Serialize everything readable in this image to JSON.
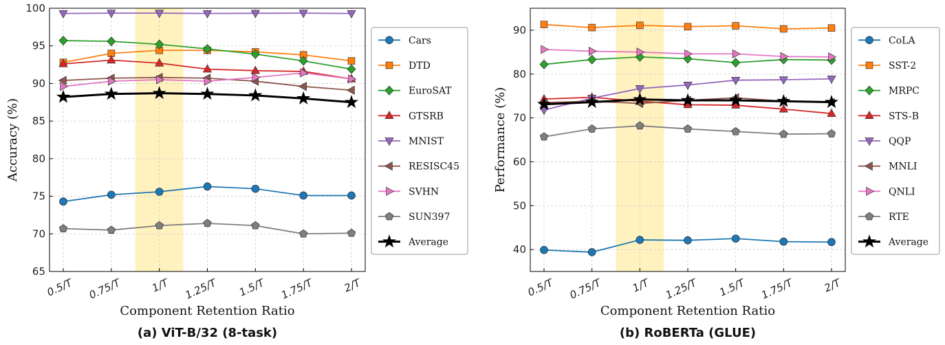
{
  "chart_data": [
    {
      "type": "line",
      "caption": "(a) ViT-B/32 (8-task)",
      "xlabel": "Component Retention Ratio",
      "ylabel": "Accuracy (%)",
      "categories": [
        "0.5/T",
        "0.75/T",
        "1/T",
        "1.25/T",
        "1.5/T",
        "1.75/T",
        "2/T"
      ],
      "ylim": [
        65,
        100
      ],
      "yticks": [
        65,
        70,
        75,
        80,
        85,
        90,
        95,
        100
      ],
      "highlight_category": "1/T",
      "grid": true,
      "legend_position": "outside-right",
      "series": [
        {
          "name": "Cars",
          "color": "#1f77b4",
          "marker": "circle",
          "values": [
            74.3,
            75.2,
            75.6,
            76.3,
            76.0,
            75.1,
            75.1
          ]
        },
        {
          "name": "DTD",
          "color": "#ff7f0e",
          "marker": "square",
          "values": [
            92.8,
            94.0,
            94.4,
            94.4,
            94.2,
            93.8,
            93.0
          ]
        },
        {
          "name": "EuroSAT",
          "color": "#2ca02c",
          "marker": "diamond",
          "values": [
            95.7,
            95.6,
            95.2,
            94.6,
            93.9,
            93.0,
            91.9
          ]
        },
        {
          "name": "GTSRB",
          "color": "#d62728",
          "marker": "triangle-up",
          "values": [
            92.6,
            93.1,
            92.7,
            91.9,
            91.7,
            91.6,
            90.6
          ]
        },
        {
          "name": "MNIST",
          "color": "#9467bd",
          "marker": "triangle-down",
          "values": [
            99.3,
            99.35,
            99.35,
            99.3,
            99.33,
            99.35,
            99.3
          ]
        },
        {
          "name": "RESISC45",
          "color": "#8c564b",
          "marker": "triangle-left",
          "values": [
            90.4,
            90.7,
            90.8,
            90.7,
            90.3,
            89.6,
            89.1
          ]
        },
        {
          "name": "SVHN",
          "color": "#e377c2",
          "marker": "triangle-right",
          "values": [
            89.6,
            90.3,
            90.5,
            90.3,
            90.8,
            91.4,
            90.6
          ]
        },
        {
          "name": "SUN397",
          "color": "#7f7f7f",
          "marker": "pentagon",
          "values": [
            70.7,
            70.5,
            71.1,
            71.4,
            71.1,
            70.0,
            70.1
          ]
        },
        {
          "name": "Average",
          "color": "#000000",
          "marker": "star",
          "bold": true,
          "values": [
            88.2,
            88.6,
            88.7,
            88.6,
            88.4,
            88.0,
            87.5
          ]
        }
      ]
    },
    {
      "type": "line",
      "caption": "(b) RoBERTa (GLUE)",
      "xlabel": "Component Retention Ratio",
      "ylabel": "Performance (%)",
      "categories": [
        "0.5/T",
        "0.75/T",
        "1/T",
        "1.25/T",
        "1.5/T",
        "1.75/T",
        "2/T"
      ],
      "ylim": [
        35,
        95
      ],
      "yticks": [
        40,
        50,
        60,
        70,
        80,
        90
      ],
      "highlight_category": "1/T",
      "grid": true,
      "legend_position": "outside-right",
      "series": [
        {
          "name": "CoLA",
          "color": "#1f77b4",
          "marker": "circle",
          "values": [
            39.9,
            39.4,
            42.2,
            42.1,
            42.5,
            41.8,
            41.7
          ]
        },
        {
          "name": "SST-2",
          "color": "#ff7f0e",
          "marker": "square",
          "values": [
            91.3,
            90.6,
            91.1,
            90.8,
            91.0,
            90.3,
            90.5
          ]
        },
        {
          "name": "MRPC",
          "color": "#2ca02c",
          "marker": "diamond",
          "values": [
            82.2,
            83.3,
            83.9,
            83.5,
            82.6,
            83.3,
            83.2
          ]
        },
        {
          "name": "STS-B",
          "color": "#d62728",
          "marker": "triangle-up",
          "values": [
            74.3,
            74.7,
            73.8,
            73.0,
            72.9,
            72.0,
            71.0
          ]
        },
        {
          "name": "QQP",
          "color": "#9467bd",
          "marker": "triangle-down",
          "values": [
            71.8,
            74.5,
            76.7,
            77.5,
            78.6,
            78.7,
            78.9
          ]
        },
        {
          "name": "MNLI",
          "color": "#8c564b",
          "marker": "triangle-left",
          "values": [
            73.5,
            73.8,
            73.3,
            74.0,
            74.6,
            73.8,
            73.5
          ]
        },
        {
          "name": "QNLI",
          "color": "#e377c2",
          "marker": "triangle-right",
          "values": [
            85.6,
            85.2,
            85.0,
            84.6,
            84.6,
            84.0,
            83.9
          ]
        },
        {
          "name": "RTE",
          "color": "#7f7f7f",
          "marker": "pentagon",
          "values": [
            65.7,
            67.5,
            68.2,
            67.5,
            66.9,
            66.3,
            66.4
          ]
        },
        {
          "name": "Average",
          "color": "#000000",
          "marker": "star",
          "bold": true,
          "values": [
            73.1,
            73.6,
            74.2,
            74.0,
            74.0,
            73.8,
            73.6
          ]
        }
      ]
    }
  ]
}
